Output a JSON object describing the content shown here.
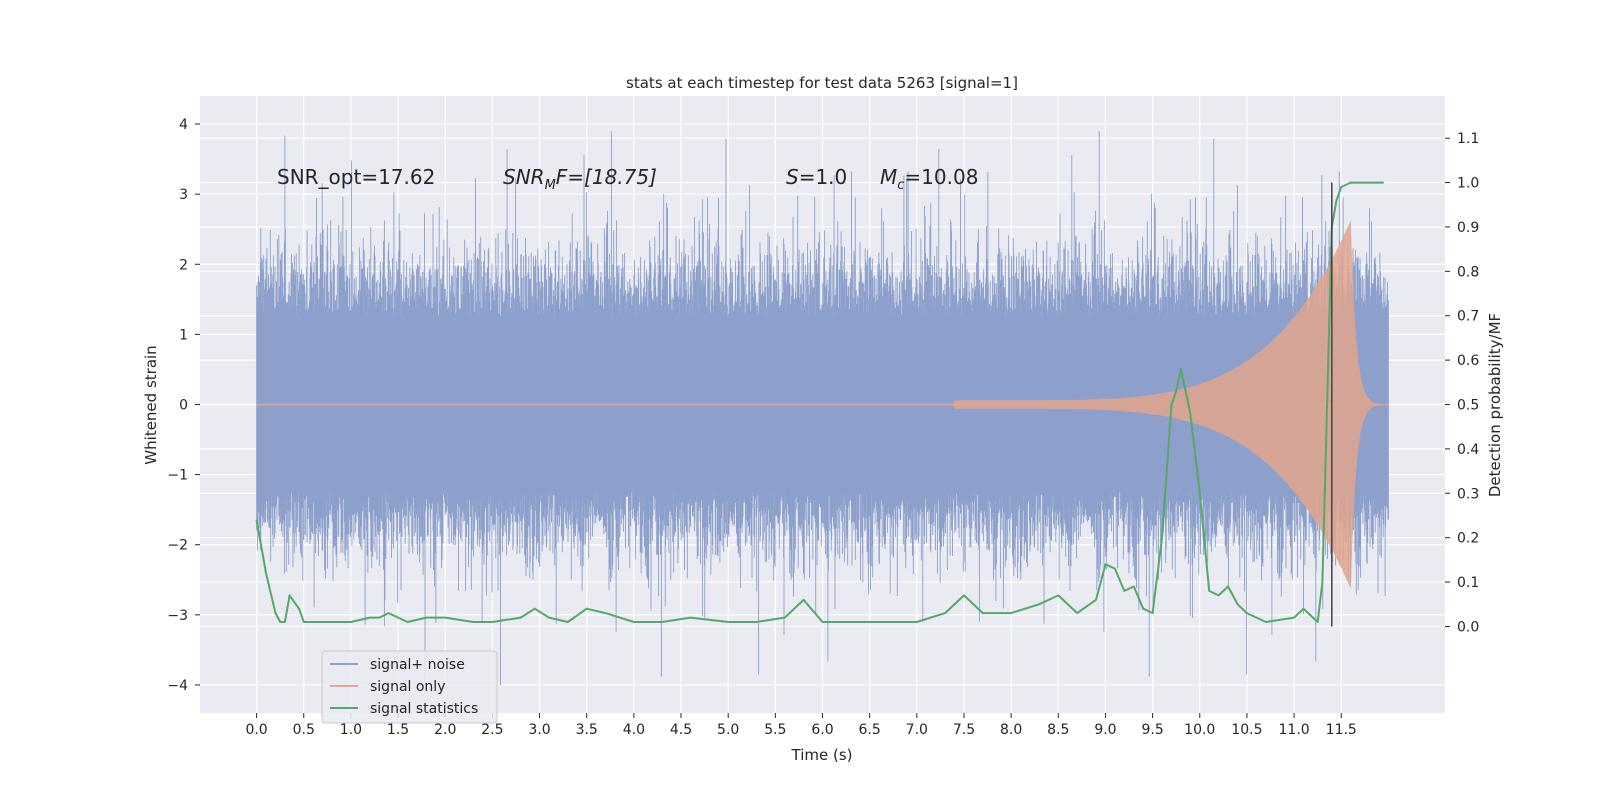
{
  "chart_data": {
    "type": "line",
    "title": "stats at each timestep for test data 5263 [signal=1]",
    "xlabel": "Time (s)",
    "ylabel": "Whitened strain",
    "y2label": "Detection probability/MF",
    "xlim": [
      -0.6,
      12.6
    ],
    "ylim": [
      -4.4,
      4.4
    ],
    "y2lim": [
      -0.195,
      1.195
    ],
    "x_ticks": [
      "0.0",
      "0.5",
      "1.0",
      "1.5",
      "2.0",
      "2.5",
      "3.0",
      "3.5",
      "4.0",
      "4.5",
      "5.0",
      "5.5",
      "6.0",
      "6.5",
      "7.0",
      "7.5",
      "8.0",
      "8.5",
      "9.0",
      "9.5",
      "10.0",
      "10.5",
      "11.0",
      "11.5"
    ],
    "y_ticks": [
      "4",
      "3",
      "2",
      "1",
      "0",
      "−1",
      "−2",
      "−3",
      "−4"
    ],
    "y2_ticks": [
      "1.1",
      "1.0",
      "0.9",
      "0.8",
      "0.7",
      "0.6",
      "0.5",
      "0.4",
      "0.3",
      "0.2",
      "0.1",
      "0.0"
    ],
    "annotations": {
      "snr_opt": "SNR_opt=17.62",
      "snr_mf_sym": "SNR",
      "snr_mf_sub": "M",
      "snr_mf_rest": "F=[18.75]",
      "s_sym": "S",
      "s_rest": "=1.0",
      "mc_sym": "M",
      "mc_sub": "c",
      "mc_rest": "=10.08"
    },
    "merger_time": 11.4,
    "duration": 12.0,
    "series": [
      {
        "name": "signal+ noise",
        "color": "#8da0cb",
        "description_values": "noise band approx ±1.9 core, spikes to about ±4"
      },
      {
        "name": "signal only",
        "color": "#e1a58d",
        "chirp": {
          "t_start": 7.4,
          "t_merge": 11.6,
          "peak_amplitude": 2.7
        }
      },
      {
        "name": "signal statistics",
        "color": "#55a868",
        "x": [
          0.0,
          0.1,
          0.2,
          0.25,
          0.3,
          0.35,
          0.45,
          0.5,
          0.6,
          0.8,
          1.0,
          1.2,
          1.3,
          1.4,
          1.6,
          1.8,
          2.0,
          2.3,
          2.5,
          2.8,
          2.95,
          3.1,
          3.3,
          3.5,
          3.7,
          4.0,
          4.3,
          4.6,
          5.0,
          5.3,
          5.6,
          5.8,
          6.0,
          6.3,
          6.7,
          7.0,
          7.3,
          7.5,
          7.7,
          8.0,
          8.3,
          8.5,
          8.7,
          8.9,
          9.0,
          9.1,
          9.2,
          9.3,
          9.4,
          9.5,
          9.6,
          9.7,
          9.75,
          9.8,
          9.9,
          10.0,
          10.1,
          10.2,
          10.3,
          10.4,
          10.5,
          10.7,
          11.0,
          11.1,
          11.2,
          11.25,
          11.3,
          11.35,
          11.4,
          11.45,
          11.5,
          11.6,
          11.8,
          11.95
        ],
        "values": [
          0.24,
          0.12,
          0.03,
          0.01,
          0.01,
          0.07,
          0.04,
          0.01,
          0.01,
          0.01,
          0.01,
          0.02,
          0.02,
          0.03,
          0.01,
          0.02,
          0.02,
          0.01,
          0.01,
          0.02,
          0.04,
          0.02,
          0.01,
          0.04,
          0.03,
          0.01,
          0.01,
          0.02,
          0.01,
          0.01,
          0.02,
          0.06,
          0.01,
          0.01,
          0.01,
          0.01,
          0.03,
          0.07,
          0.03,
          0.03,
          0.05,
          0.07,
          0.03,
          0.06,
          0.14,
          0.13,
          0.08,
          0.09,
          0.04,
          0.03,
          0.2,
          0.5,
          0.53,
          0.58,
          0.48,
          0.3,
          0.08,
          0.07,
          0.09,
          0.05,
          0.03,
          0.01,
          0.02,
          0.04,
          0.02,
          0.01,
          0.1,
          0.5,
          0.9,
          0.96,
          0.99,
          1.0,
          1.0,
          1.0
        ]
      }
    ],
    "legend_location": "lower-left"
  }
}
